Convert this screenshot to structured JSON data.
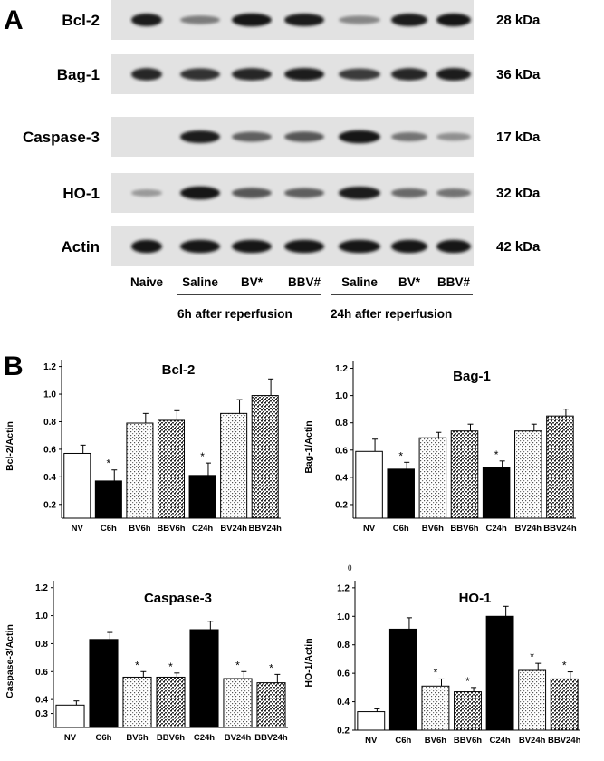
{
  "panel_a": {
    "letter": "A",
    "blots": [
      {
        "label": "Bcl-2",
        "kda": "28 kDa",
        "intensity": [
          0.9,
          0.4,
          0.95,
          0.9,
          0.35,
          0.9,
          0.92
        ]
      },
      {
        "label": "Bag-1",
        "kda": "36 kDa",
        "intensity": [
          0.85,
          0.8,
          0.85,
          0.9,
          0.75,
          0.85,
          0.9
        ]
      },
      {
        "label": "Caspase-3",
        "kda": "17 kDa",
        "intensity": [
          0.0,
          0.9,
          0.55,
          0.6,
          0.95,
          0.45,
          0.3
        ]
      },
      {
        "label": "HO-1",
        "kda": "32 kDa",
        "intensity": [
          0.25,
          0.95,
          0.6,
          0.55,
          0.9,
          0.5,
          0.45
        ]
      },
      {
        "label": "Actin",
        "kda": "42 kDa",
        "intensity": [
          0.95,
          0.95,
          0.95,
          0.95,
          0.95,
          0.95,
          0.95
        ]
      }
    ],
    "lanes": [
      "Naive",
      "Saline",
      "BV*",
      "BBV#",
      "Saline",
      "BV*",
      "BBV#"
    ],
    "groups": [
      "6h after reperfusion",
      "24h after reperfusion"
    ],
    "band_color": "#1a1a1a"
  },
  "panel_b": {
    "letter": "B",
    "stray_mark": "0"
  },
  "chart_data": [
    {
      "type": "bar",
      "title": "Bcl-2",
      "ylabel": "Bcl-2/Actin",
      "ylim": [
        0.1,
        1.25
      ],
      "yticks": [
        "0.2",
        "0.4",
        "0.6",
        "0.8",
        "1.0",
        "1.2"
      ],
      "categories": [
        "NV",
        "C6h",
        "BV6h",
        "BBV6h",
        "C24h",
        "BV24h",
        "BBV24h"
      ],
      "values": [
        0.57,
        0.37,
        0.79,
        0.81,
        0.41,
        0.86,
        0.99
      ],
      "errors": [
        0.06,
        0.08,
        0.07,
        0.07,
        0.09,
        0.1,
        0.12
      ],
      "fills": [
        "white",
        "black",
        "dots",
        "dense",
        "black",
        "dots",
        "dense"
      ],
      "significant": [
        "",
        "*",
        "",
        "",
        "*",
        "",
        ""
      ]
    },
    {
      "type": "bar",
      "title": "Bag-1",
      "ylabel": "Bag-1/Actin",
      "ylim": [
        0.1,
        1.25
      ],
      "yticks": [
        "0.2",
        "0.4",
        "0.6",
        "0.8",
        "1.0",
        "1.2"
      ],
      "categories": [
        "NV",
        "C6h",
        "BV6h",
        "BBV6h",
        "C24h",
        "BV24h",
        "BBV24h"
      ],
      "values": [
        0.59,
        0.46,
        0.69,
        0.74,
        0.47,
        0.74,
        0.85
      ],
      "errors": [
        0.09,
        0.05,
        0.04,
        0.05,
        0.05,
        0.05,
        0.05
      ],
      "fills": [
        "white",
        "black",
        "dots",
        "dense",
        "black",
        "dots",
        "dense"
      ],
      "significant": [
        "",
        "*",
        "",
        "",
        "*",
        "",
        ""
      ]
    },
    {
      "type": "bar",
      "title": "Caspase-3",
      "ylabel": "Caspase-3/Actin",
      "ylim": [
        0.2,
        1.25
      ],
      "yticks": [
        "0.3",
        "0.4",
        "0.6",
        "0.8",
        "1.0",
        "1.2"
      ],
      "categories": [
        "NV",
        "C6h",
        "BV6h",
        "BBV6h",
        "C24h",
        "BV24h",
        "BBV24h"
      ],
      "values": [
        0.36,
        0.83,
        0.56,
        0.56,
        0.9,
        0.55,
        0.52
      ],
      "errors": [
        0.03,
        0.05,
        0.04,
        0.03,
        0.06,
        0.05,
        0.06
      ],
      "fills": [
        "white",
        "black",
        "dots",
        "dense",
        "black",
        "dots",
        "dense"
      ],
      "significant": [
        "",
        "",
        "*",
        "*",
        "",
        "*",
        "*"
      ]
    },
    {
      "type": "bar",
      "title": "HO-1",
      "ylabel": "HO-1/Actin",
      "ylim": [
        0.2,
        1.25
      ],
      "yticks": [
        "0.2",
        "0.4",
        "0.6",
        "0.8",
        "1.0",
        "1.2"
      ],
      "categories": [
        "NV",
        "C6h",
        "BV6h",
        "BBV6h",
        "C24h",
        "BV24h",
        "BBV24h"
      ],
      "values": [
        0.33,
        0.91,
        0.51,
        0.47,
        1.0,
        0.62,
        0.56
      ],
      "errors": [
        0.02,
        0.08,
        0.05,
        0.03,
        0.07,
        0.05,
        0.05
      ],
      "fills": [
        "white",
        "black",
        "dots",
        "dense",
        "black",
        "dots",
        "dense"
      ],
      "significant": [
        "",
        "",
        "*",
        "*",
        "",
        "*",
        "*"
      ]
    }
  ]
}
